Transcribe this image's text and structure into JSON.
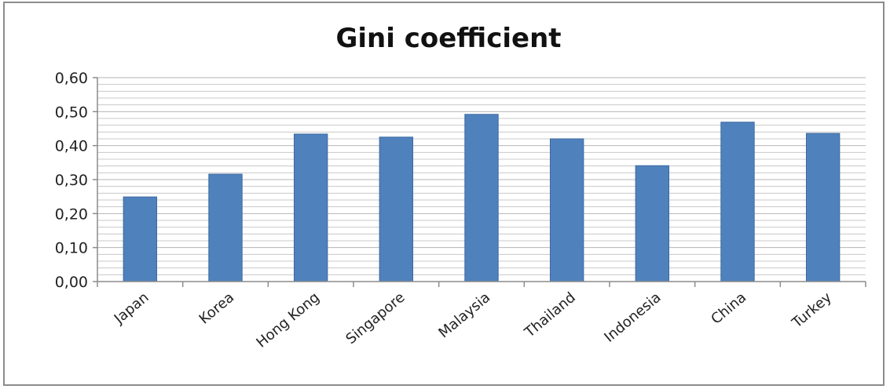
{
  "chart_data": {
    "type": "bar",
    "title": "Gini coefficient",
    "xlabel": "",
    "ylabel": "",
    "categories": [
      "Japan",
      "Korea",
      "Hong Kong",
      "Singapore",
      "Malaysia",
      "Thailand",
      "Indonesia",
      "China",
      "Turkey"
    ],
    "values": [
      0.249,
      0.316,
      0.434,
      0.425,
      0.492,
      0.42,
      0.341,
      0.469,
      0.436
    ],
    "ylim": [
      0,
      0.6
    ],
    "yticks": [
      0.0,
      0.1,
      0.2,
      0.3,
      0.4,
      0.5,
      0.6
    ],
    "ytick_labels": [
      "0,00",
      "0,10",
      "0,20",
      "0,30",
      "0,40",
      "0,50",
      "0,60"
    ],
    "minor_gridline_step": 0.02,
    "grid": true,
    "legend": "none",
    "colors": {
      "bar": "#4f81bd",
      "bar_edge": "#3c6a9f",
      "grid": "#c8c8c8",
      "axis": "#8c8c8c"
    }
  }
}
